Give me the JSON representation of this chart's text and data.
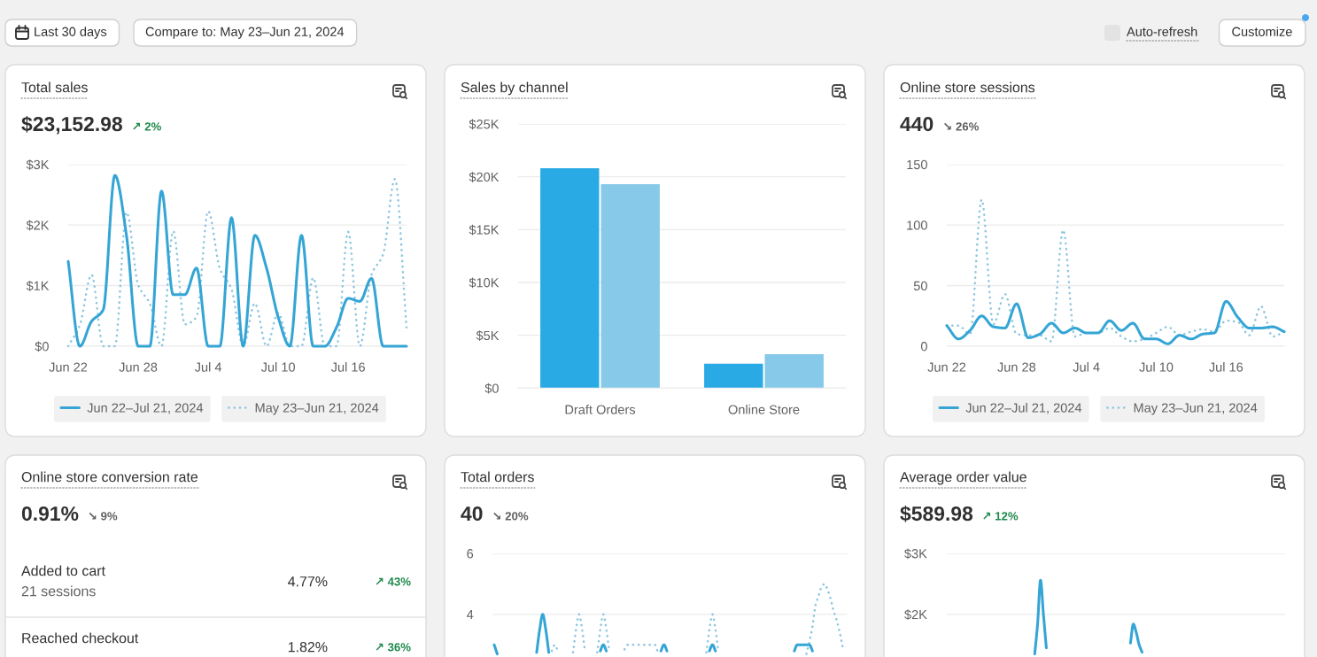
{
  "chart_data": [
    {
      "type": "other",
      "annotations": [
        "Last 30 days",
        "Compare to: May 23–Jun 21, 2024",
        "Auto-refresh",
        "Customize"
      ]
    },
    {
      "type": "line",
      "title": "Total sales",
      "subtitle": "$23,152.98",
      "annotations": [
        "↗ 2%"
      ],
      "categories": [
        "Jun 22",
        null,
        null,
        null,
        null,
        null,
        "Jun 28",
        null,
        null,
        null,
        null,
        null,
        "Jul 4",
        null,
        null,
        null,
        null,
        null,
        "Jul 10",
        null,
        null,
        null,
        null,
        null,
        "Jul 16",
        null,
        null,
        null,
        null,
        null
      ],
      "ylim": [
        0,
        3000
      ],
      "yticks": [
        {
          "value": 0,
          "label": "$0"
        },
        {
          "value": 1000,
          "label": "$1K"
        },
        {
          "value": 2000,
          "label": "$2K"
        },
        {
          "value": 3000,
          "label": "$3K"
        }
      ],
      "grid": "y",
      "legend": "bottom",
      "series": [
        {
          "name": "Jun 22–Jul 21, 2024",
          "color": "#35a5d5",
          "line_style": "solid",
          "values": [
            1400,
            0,
            410,
            600,
            2820,
            1820,
            0,
            0,
            2560,
            850,
            850,
            1290,
            0,
            0,
            2120,
            0,
            1830,
            1290,
            480,
            0,
            1830,
            0,
            0,
            310,
            790,
            740,
            1120,
            0,
            0,
            0
          ]
        },
        {
          "name": "May 23–Jun 21, 2024",
          "color": "#8dc6de",
          "line_style": "dotted",
          "values": [
            0,
            350,
            1180,
            0,
            0,
            2210,
            1010,
            700,
            0,
            1900,
            360,
            480,
            2230,
            1280,
            940,
            0,
            710,
            0,
            550,
            0,
            0,
            1130,
            0,
            0,
            1890,
            0,
            1180,
            1520,
            2760,
            310
          ]
        }
      ]
    },
    {
      "type": "bar",
      "title": "Sales by channel",
      "categories": [
        "Draft Orders",
        "Online Store"
      ],
      "ylim": [
        0,
        25000
      ],
      "yticks": [
        {
          "value": 0,
          "label": "$0"
        },
        {
          "value": 5000,
          "label": "$5K"
        },
        {
          "value": 10000,
          "label": "$10K"
        },
        {
          "value": 15000,
          "label": "$15K"
        },
        {
          "value": 20000,
          "label": "$20K"
        },
        {
          "value": 25000,
          "label": "$25K"
        }
      ],
      "grid": "y",
      "series": [
        {
          "color": "#29aae4",
          "values": [
            20800,
            2300
          ]
        },
        {
          "color": "#86c9e9",
          "values": [
            19300,
            3200
          ]
        }
      ]
    },
    {
      "type": "line",
      "title": "Online store sessions",
      "subtitle": "440",
      "annotations": [
        "↘ 26%"
      ],
      "categories": [
        "Jun 22",
        null,
        null,
        null,
        null,
        null,
        "Jun 28",
        null,
        null,
        null,
        null,
        null,
        "Jul 4",
        null,
        null,
        null,
        null,
        null,
        "Jul 10",
        null,
        null,
        null,
        null,
        null,
        "Jul 16",
        null,
        null,
        null,
        null,
        null
      ],
      "ylim": [
        0,
        150
      ],
      "yticks": [
        0,
        50,
        100,
        150
      ],
      "grid": "y",
      "legend": "bottom",
      "series": [
        {
          "name": "Jun 22–Jul 21, 2024",
          "color": "#35a5d5",
          "line_style": "solid",
          "values": [
            17,
            6,
            13,
            25,
            16,
            15,
            35,
            7,
            10,
            19,
            11,
            15,
            11,
            11,
            21,
            13,
            19,
            6,
            6,
            2,
            9,
            6,
            10,
            11,
            37,
            24,
            15,
            15,
            16,
            12
          ]
        },
        {
          "name": "May 23–Jun 21, 2024",
          "color": "#8dc6de",
          "line_style": "dotted",
          "values": [
            17,
            17,
            10,
            121,
            18,
            43,
            10,
            9,
            9,
            4,
            96,
            8,
            11,
            11,
            15,
            8,
            4,
            6,
            11,
            16,
            9,
            12,
            14,
            12,
            21,
            20,
            9,
            33,
            8,
            12
          ]
        }
      ]
    },
    {
      "type": "other",
      "title": "Online store conversion rate",
      "subtitle": "0.91%",
      "annotations": [
        "↘ 9%",
        "Added to cart",
        "21 sessions",
        "4.77%",
        "↗ 43%",
        "Reached checkout",
        "1.82%",
        "↗ 36%"
      ]
    },
    {
      "type": "line",
      "title": "Total orders",
      "subtitle": "40",
      "annotations": [
        "↘ 20%"
      ],
      "categories": [
        null,
        null,
        null,
        null,
        null,
        null,
        null,
        null,
        null,
        null,
        null,
        null,
        null,
        null,
        null,
        null,
        null,
        null,
        null,
        null,
        null,
        null,
        null,
        null,
        null,
        null,
        null,
        null,
        null,
        null,
        null,
        null,
        null,
        null,
        null,
        null,
        null,
        null,
        null,
        null,
        null,
        null,
        null,
        null,
        null,
        null,
        null,
        null,
        null,
        null,
        null,
        null,
        null,
        null,
        null,
        null,
        null,
        null,
        null,
        null,
        null,
        null,
        null,
        null,
        null,
        null,
        null,
        null,
        null,
        null,
        null,
        null,
        null,
        null,
        null,
        null,
        null,
        null,
        null,
        null,
        null,
        null,
        null,
        null,
        null,
        null,
        null,
        null,
        null,
        null,
        null,
        null,
        null,
        null,
        null,
        null,
        null,
        null,
        null,
        null,
        null,
        null,
        null,
        null,
        null,
        null,
        null,
        null,
        null,
        null,
        null,
        null,
        null,
        null,
        null,
        null,
        null
      ],
      "ylim": [
        2.6,
        6
      ],
      "yticks": [
        4,
        6
      ],
      "tick_labels": "y",
      "grid": "y",
      "series": [
        {
          "color": "#35a5d5",
          "line_style": "solid",
          "values": [
            3,
            2.7,
            null,
            null,
            null,
            null,
            null,
            null,
            null,
            null,
            null,
            null,
            null,
            null,
            2.75,
            3.5,
            4,
            3.5,
            2.75,
            null,
            null,
            null,
            null,
            null,
            null,
            null,
            null,
            null,
            null,
            null,
            null,
            null,
            null,
            null,
            null,
            2.8,
            3,
            2.8,
            null,
            null,
            null,
            null,
            null,
            null,
            null,
            null,
            null,
            null,
            null,
            null,
            null,
            null,
            null,
            null,
            null,
            2.8,
            3,
            2.8,
            null,
            null,
            null,
            null,
            null,
            null,
            null,
            null,
            null,
            null,
            null,
            null,
            null,
            2.8,
            3,
            2.8,
            null,
            null,
            null,
            null,
            null,
            null,
            null,
            null,
            null,
            null,
            null,
            null,
            null,
            null,
            null,
            null,
            null,
            null,
            null,
            null,
            null,
            null,
            null,
            null,
            null,
            2.8,
            3,
            3,
            3,
            3,
            3,
            2.8,
            null,
            null,
            null,
            null,
            null,
            null,
            null,
            null,
            null,
            null,
            null
          ]
        },
        {
          "color": "#8dc6de",
          "line_style": "dotted",
          "values": [
            null,
            null,
            null,
            null,
            null,
            null,
            null,
            null,
            null,
            null,
            null,
            null,
            null,
            null,
            null,
            null,
            null,
            null,
            null,
            2.8,
            3,
            2.8,
            null,
            null,
            null,
            null,
            2.75,
            3.5,
            4,
            3.5,
            2.75,
            null,
            null,
            null,
            2.75,
            3.5,
            4,
            3.5,
            2.75,
            null,
            null,
            null,
            null,
            2.85,
            3,
            3,
            3,
            3,
            3,
            3,
            3,
            3,
            3,
            3,
            2.75,
            null,
            null,
            null,
            null,
            null,
            null,
            null,
            null,
            null,
            null,
            null,
            null,
            null,
            null,
            null,
            2.75,
            3.5,
            4,
            3.5,
            2.75,
            null,
            null,
            null,
            null,
            null,
            null,
            null,
            null,
            null,
            null,
            null,
            null,
            null,
            null,
            null,
            null,
            null,
            null,
            null,
            null,
            null,
            null,
            null,
            null,
            null,
            null,
            null,
            null,
            2.7,
            3.1,
            3.6,
            4.3,
            4.6,
            4.9,
            5,
            4.8,
            4.5,
            4.1,
            3.8,
            3.4,
            2.9,
            null
          ]
        }
      ]
    },
    {
      "type": "line",
      "title": "Average order value",
      "subtitle": "$589.98",
      "annotations": [
        "↗ 12%"
      ],
      "categories": [
        null,
        null,
        null,
        null,
        null,
        null,
        null,
        null,
        null,
        null,
        null,
        null,
        null,
        null,
        null,
        null,
        null,
        null,
        null,
        null,
        null,
        null,
        null,
        null,
        null,
        null,
        null,
        null,
        null,
        null,
        null,
        null,
        null,
        null,
        null,
        null,
        null,
        null,
        null,
        null,
        null,
        null,
        null,
        null,
        null,
        null,
        null,
        null,
        null,
        null,
        null,
        null,
        null,
        null,
        null,
        null,
        null,
        null,
        null,
        null,
        null,
        null,
        null,
        null,
        null,
        null,
        null,
        null,
        null,
        null,
        null,
        null,
        null,
        null,
        null,
        null,
        null,
        null,
        null,
        null,
        null,
        null,
        null,
        null,
        null,
        null,
        null,
        null,
        null,
        null,
        null,
        null,
        null,
        null,
        null,
        null,
        null,
        null,
        null,
        null,
        null,
        null,
        null,
        null,
        null,
        null,
        null,
        null,
        null,
        null,
        null,
        null,
        null,
        null,
        null,
        null,
        null
      ],
      "ylim": [
        1300,
        3000
      ],
      "yticks": [
        {
          "value": 2000,
          "label": "$2K"
        },
        {
          "value": 3000,
          "label": "$3K"
        }
      ],
      "tick_labels": "y",
      "grid": "y",
      "series": [
        {
          "color": "#35a5d5",
          "line_style": "solid",
          "values": [
            null,
            null,
            null,
            null,
            null,
            null,
            null,
            null,
            null,
            null,
            null,
            null,
            null,
            null,
            null,
            null,
            null,
            null,
            null,
            null,
            null,
            null,
            null,
            null,
            null,
            null,
            null,
            null,
            null,
            null,
            1350,
            1850,
            2560,
            2000,
            1450,
            null,
            null,
            null,
            null,
            null,
            null,
            null,
            null,
            null,
            null,
            null,
            null,
            null,
            null,
            null,
            null,
            null,
            null,
            null,
            null,
            null,
            null,
            null,
            null,
            null,
            null,
            null,
            null,
            1530,
            1840,
            1700,
            1500,
            1380,
            null,
            null,
            null,
            null,
            null,
            null,
            null,
            null,
            null,
            null,
            null,
            null,
            null,
            null,
            null,
            null,
            null,
            null,
            null,
            null,
            null,
            null,
            null,
            null,
            null,
            null,
            null,
            null,
            null,
            null,
            null,
            null,
            null,
            null,
            null,
            null,
            null,
            null,
            null,
            null,
            null,
            null,
            null,
            null,
            null,
            null,
            null,
            null,
            null
          ]
        }
      ]
    }
  ]
}
